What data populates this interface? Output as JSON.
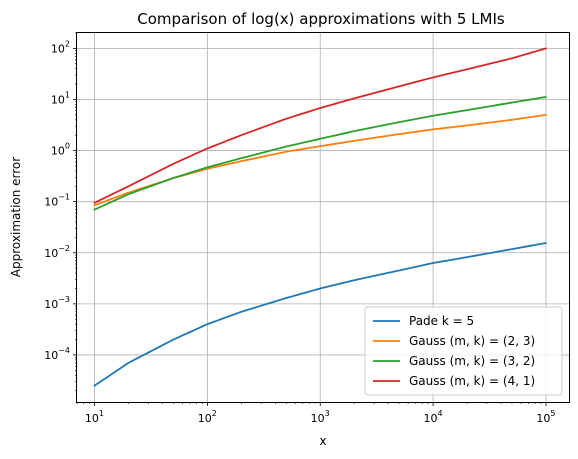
{
  "chart_data": {
    "type": "line",
    "title": "Comparison of log(x) approximations with 5 LMIs",
    "xlabel": "x",
    "ylabel": "Approximation error",
    "xscale": "log",
    "yscale": "log",
    "xlim": [
      7,
      160000
    ],
    "ylim": [
      1.2e-05,
      200
    ],
    "grid": true,
    "legend_position": "lower-right",
    "x_ticks": [
      {
        "value": 10,
        "base": "10",
        "exp": "1"
      },
      {
        "value": 100,
        "base": "10",
        "exp": "2"
      },
      {
        "value": 1000,
        "base": "10",
        "exp": "3"
      },
      {
        "value": 10000,
        "base": "10",
        "exp": "4"
      },
      {
        "value": 100000,
        "base": "10",
        "exp": "5"
      }
    ],
    "y_ticks": [
      {
        "value": 0.0001,
        "base": "10",
        "exp": "−4"
      },
      {
        "value": 0.001,
        "base": "10",
        "exp": "−3"
      },
      {
        "value": 0.01,
        "base": "10",
        "exp": "−2"
      },
      {
        "value": 0.1,
        "base": "10",
        "exp": "−1"
      },
      {
        "value": 1,
        "base": "10",
        "exp": "0"
      },
      {
        "value": 10,
        "base": "10",
        "exp": "1"
      },
      {
        "value": 100,
        "base": "10",
        "exp": "2"
      }
    ],
    "x": [
      10,
      20,
      50,
      100,
      200,
      500,
      1000,
      2000,
      5000,
      10000,
      20000,
      50000,
      100000
    ],
    "series": [
      {
        "name": "Pade k = 5",
        "color": "#1f77b4",
        "values": [
          2.5e-05,
          7e-05,
          0.0002,
          0.0004,
          0.0007,
          0.0013,
          0.002,
          0.0029,
          0.0045,
          0.0063,
          0.0082,
          0.0118,
          0.0155
        ]
      },
      {
        "name": "Gauss (m, k) = (2, 3)",
        "color": "#ff7f0e",
        "values": [
          0.085,
          0.15,
          0.29,
          0.44,
          0.62,
          0.95,
          1.22,
          1.55,
          2.1,
          2.6,
          3.1,
          4.0,
          5.0
        ]
      },
      {
        "name": "Gauss (m, k) = (3, 2)",
        "color": "#2ca02c",
        "values": [
          0.07,
          0.14,
          0.29,
          0.47,
          0.71,
          1.2,
          1.7,
          2.4,
          3.6,
          4.8,
          6.2,
          8.7,
          11.2
        ]
      },
      {
        "name": "Gauss (m, k) = (4, 1)",
        "color": "#d62728",
        "values": [
          0.095,
          0.2,
          0.55,
          1.1,
          2.0,
          4.2,
          6.8,
          10.5,
          18.0,
          27.0,
          39.0,
          64.0,
          100.0
        ]
      }
    ]
  }
}
